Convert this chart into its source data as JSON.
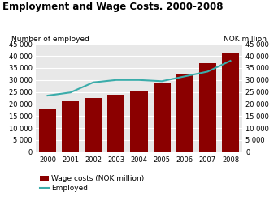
{
  "title": "Employment and Wage Costs. 2000-2008",
  "years": [
    2000,
    2001,
    2002,
    2003,
    2004,
    2005,
    2006,
    2007,
    2008
  ],
  "wage_costs": [
    18000,
    21000,
    22500,
    23800,
    25200,
    28500,
    32500,
    37000,
    41500
  ],
  "employed": [
    23500,
    24800,
    29000,
    30000,
    30000,
    29500,
    31500,
    33500,
    38000
  ],
  "bar_color": "#8B0000",
  "line_color": "#3AACAA",
  "ylabel_left": "Number of employed",
  "ylabel_right": "NOK million",
  "ylim": [
    0,
    45000
  ],
  "yticks": [
    0,
    5000,
    10000,
    15000,
    20000,
    25000,
    30000,
    35000,
    40000,
    45000
  ],
  "legend_labels": [
    "Wage costs (NOK million)",
    "Employed"
  ],
  "background_color": "#ffffff",
  "plot_bg_color": "#e8e8e8",
  "title_fontsize": 8.5,
  "axis_label_fontsize": 6.5,
  "tick_fontsize": 6,
  "legend_fontsize": 6.5
}
